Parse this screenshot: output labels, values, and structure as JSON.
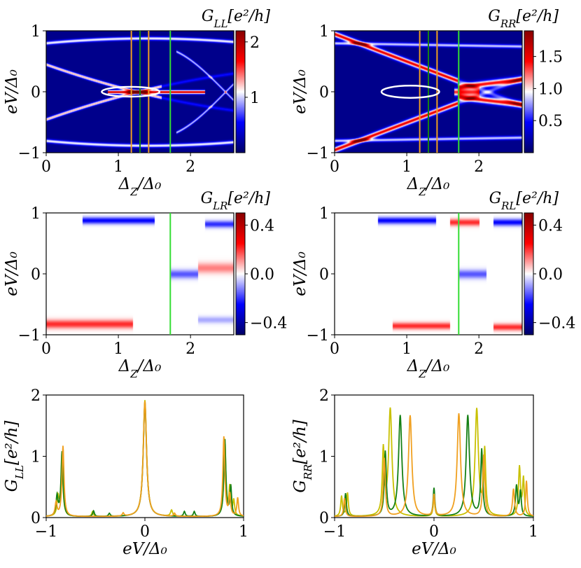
{
  "chart_data": [
    {
      "id": "GLL-map",
      "type": "heatmap",
      "title": "G_LL[e²/h]",
      "xlabel": "Δ_Z/Δ₀",
      "ylabel": "eV/Δ₀",
      "xlim": [
        0,
        2.6
      ],
      "ylim": [
        -1,
        1
      ],
      "xticks": [
        "0",
        "1",
        "2"
      ],
      "yticks": [
        "−1",
        "0",
        "1"
      ],
      "colorbar": {
        "ticks": [
          "1",
          "2"
        ],
        "range": [
          0,
          2.2
        ],
        "colors": [
          "#000066",
          "#0000ff",
          "#ffffff",
          "#ff0000",
          "#880000"
        ]
      },
      "vlines": [
        {
          "x": 1.18,
          "color": "#f0a020"
        },
        {
          "x": 1.3,
          "color": "#158015"
        },
        {
          "x": 1.42,
          "color": "#f0a020"
        },
        {
          "x": 1.72,
          "color": "#33dd33"
        }
      ],
      "ellipse": {
        "cx": 1.17,
        "cy": 0.0,
        "rx": 0.4,
        "ry": 0.08,
        "color": "#ffffff"
      }
    },
    {
      "id": "GRR-map",
      "type": "heatmap",
      "title": "G_RR[e²/h]",
      "xlabel": "Δ_Z/Δ₀",
      "ylabel": "eV/Δ₀",
      "xlim": [
        0,
        2.6
      ],
      "ylim": [
        -1,
        1
      ],
      "xticks": [
        "0",
        "1",
        "2"
      ],
      "yticks": [
        "−1",
        "0",
        "1"
      ],
      "colorbar": {
        "ticks": [
          "0.5",
          "1.0",
          "1.5"
        ],
        "range": [
          0,
          1.9
        ],
        "colors": [
          "#000066",
          "#0000ff",
          "#ffffff",
          "#ff0000",
          "#880000"
        ]
      },
      "vlines": [
        {
          "x": 1.18,
          "color": "#f0a020"
        },
        {
          "x": 1.3,
          "color": "#158015"
        },
        {
          "x": 1.42,
          "color": "#f0a020"
        },
        {
          "x": 1.72,
          "color": "#33dd33"
        }
      ],
      "ellipse": {
        "cx": 1.05,
        "cy": 0.0,
        "rx": 0.4,
        "ry": 0.1,
        "color": "#ffffff"
      }
    },
    {
      "id": "GLR-map",
      "type": "heatmap",
      "title": "G_LR[e²/h]",
      "xlabel": "Δ_Z/Δ₀",
      "ylabel": "eV/Δ₀",
      "xlim": [
        0,
        2.6
      ],
      "ylim": [
        -1,
        1
      ],
      "xticks": [
        "0",
        "1",
        "2"
      ],
      "yticks": [
        "−1",
        "0",
        "1"
      ],
      "colorbar": {
        "ticks": [
          "−0.4",
          "0.0",
          "0.4"
        ],
        "range": [
          -0.5,
          0.5
        ],
        "colors": [
          "#000066",
          "#0000ff",
          "#ffffff",
          "#ff0000",
          "#880000"
        ]
      },
      "vlines": [
        {
          "x": 1.72,
          "color": "#33dd33"
        }
      ]
    },
    {
      "id": "GRL-map",
      "type": "heatmap",
      "title": "G_RL[e²/h]",
      "xlabel": "Δ_Z/Δ₀",
      "ylabel": "eV/Δ₀",
      "xlim": [
        0,
        2.6
      ],
      "ylim": [
        -1,
        1
      ],
      "xticks": [
        "0",
        "1",
        "2"
      ],
      "yticks": [
        "−1",
        "0",
        "1"
      ],
      "colorbar": {
        "ticks": [
          "−0.4",
          "0.0",
          "0.4"
        ],
        "range": [
          -0.5,
          0.5
        ],
        "colors": [
          "#000066",
          "#0000ff",
          "#ffffff",
          "#ff0000",
          "#880000"
        ]
      },
      "vlines": [
        {
          "x": 1.72,
          "color": "#33dd33"
        }
      ]
    },
    {
      "id": "GLL-cuts",
      "type": "line",
      "xlabel": "eV/Δ₀",
      "ylabel": "G_LL[e²/h]",
      "xlim": [
        -1,
        1
      ],
      "ylim": [
        0,
        2
      ],
      "xticks": [
        "−1",
        "0",
        "1"
      ],
      "yticks": [
        "0",
        "1",
        "2"
      ],
      "series": [
        {
          "color": "#c8c000",
          "peaks": [
            [
              -0.88,
              0.3,
              0.012
            ],
            [
              -0.84,
              0.95,
              0.012
            ],
            [
              -0.53,
              0.08,
              0.01
            ],
            [
              0,
              1.9,
              0.02
            ],
            [
              0.27,
              0.1,
              0.012
            ],
            [
              0.81,
              1.25,
              0.012
            ],
            [
              0.86,
              0.45,
              0.01
            ],
            [
              0.9,
              0.25,
              0.01
            ]
          ]
        },
        {
          "color": "#158015",
          "peaks": [
            [
              -0.89,
              0.32,
              0.012
            ],
            [
              -0.84,
              1.05,
              0.012
            ],
            [
              -0.52,
              0.09,
              0.01
            ],
            [
              -0.36,
              0.05,
              0.01
            ],
            [
              0,
              1.85,
              0.02
            ],
            [
              0.4,
              0.08,
              0.01
            ],
            [
              0.5,
              0.08,
              0.01
            ],
            [
              0.81,
              1.25,
              0.012
            ],
            [
              0.87,
              0.48,
              0.01
            ]
          ]
        },
        {
          "color": "#f0a020",
          "peaks": [
            [
              -0.9,
              0.22,
              0.012
            ],
            [
              -0.83,
              1.15,
              0.012
            ],
            [
              -0.22,
              0.05,
              0.01
            ],
            [
              0,
              1.88,
              0.02
            ],
            [
              0.3,
              0.05,
              0.01
            ],
            [
              0.8,
              1.3,
              0.012
            ],
            [
              0.86,
              0.35,
              0.01
            ],
            [
              0.94,
              0.3,
              0.01
            ]
          ]
        }
      ]
    },
    {
      "id": "GRR-cuts",
      "type": "line",
      "xlabel": "eV/Δ₀",
      "ylabel": "G_RR[e²/h]",
      "xlim": [
        -1,
        1
      ],
      "ylim": [
        0,
        2
      ],
      "xticks": [
        "−1",
        "0",
        "1"
      ],
      "yticks": [
        "0",
        "1",
        "2"
      ],
      "series": [
        {
          "color": "#c8c000",
          "peaks": [
            [
              -0.93,
              0.33,
              0.01
            ],
            [
              -0.87,
              0.38,
              0.01
            ],
            [
              -0.51,
              1.05,
              0.012
            ],
            [
              -0.44,
              1.75,
              0.02
            ],
            [
              0,
              0.3,
              0.01
            ],
            [
              0.43,
              1.75,
              0.02
            ],
            [
              0.51,
              1.05,
              0.012
            ],
            [
              0.86,
              0.8,
              0.012
            ],
            [
              0.9,
              0.6,
              0.01
            ]
          ]
        },
        {
          "color": "#158015",
          "peaks": [
            [
              -0.89,
              0.38,
              0.01
            ],
            [
              -0.49,
              1.05,
              0.012
            ],
            [
              -0.34,
              1.65,
              0.02
            ],
            [
              0,
              0.46,
              0.01
            ],
            [
              0.34,
              1.65,
              0.02
            ],
            [
              0.48,
              1.08,
              0.012
            ],
            [
              0.83,
              0.5,
              0.012
            ],
            [
              0.87,
              0.4,
              0.01
            ]
          ]
        },
        {
          "color": "#f0a020",
          "peaks": [
            [
              -0.9,
              0.3,
              0.01
            ],
            [
              -0.5,
              0.95,
              0.012
            ],
            [
              -0.24,
              1.65,
              0.02
            ],
            [
              0,
              0.35,
              0.01
            ],
            [
              0.25,
              1.68,
              0.02
            ],
            [
              0.5,
              1.0,
              0.012
            ],
            [
              0.8,
              0.45,
              0.012
            ],
            [
              0.93,
              0.58,
              0.01
            ]
          ]
        }
      ]
    }
  ]
}
